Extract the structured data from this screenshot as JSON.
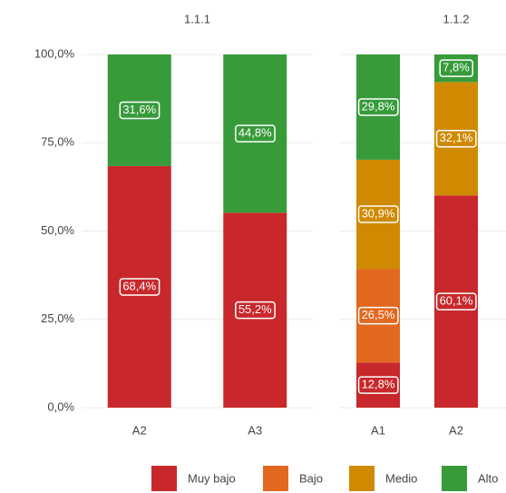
{
  "chart_data": {
    "type": "bar",
    "stacked": true,
    "ylim": [
      0,
      100
    ],
    "yticks": [
      {
        "value": 0,
        "label": "0,0%"
      },
      {
        "value": 25,
        "label": "25,0%"
      },
      {
        "value": 50,
        "label": "50,0%"
      },
      {
        "value": 75,
        "label": "75,0%"
      },
      {
        "value": 100,
        "label": "100,0%"
      }
    ],
    "grid": true,
    "legend": [
      {
        "name": "Muy bajo",
        "color": "#c8282b"
      },
      {
        "name": "Bajo",
        "color": "#e2681e"
      },
      {
        "name": "Medio",
        "color": "#cf8a02"
      },
      {
        "name": "Alto",
        "color": "#379b3a"
      }
    ],
    "facets": [
      {
        "title": "1.1.1",
        "categories": [
          "A2",
          "A3"
        ],
        "series": [
          {
            "values": [
              68.4,
              55.2
            ],
            "value_labels": [
              "68,4%",
              "55,2%"
            ]
          },
          {
            "values": [
              null,
              null
            ],
            "value_labels": [
              null,
              null
            ]
          },
          {
            "values": [
              null,
              null
            ],
            "value_labels": [
              null,
              null
            ]
          },
          {
            "values": [
              31.6,
              44.8
            ],
            "value_labels": [
              "31,6%",
              "44,8%"
            ]
          }
        ]
      },
      {
        "title": "1.1.2",
        "categories": [
          "A1",
          "A2"
        ],
        "series": [
          {
            "values": [
              12.8,
              60.1
            ],
            "value_labels": [
              "12,8%",
              "60,1%"
            ]
          },
          {
            "values": [
              26.5,
              null
            ],
            "value_labels": [
              "26,5%",
              null
            ]
          },
          {
            "values": [
              30.9,
              32.1
            ],
            "value_labels": [
              "30,9%",
              "32,1%"
            ]
          },
          {
            "values": [
              29.8,
              7.8
            ],
            "value_labels": [
              "29,8%",
              "7,8%"
            ]
          }
        ]
      }
    ]
  }
}
